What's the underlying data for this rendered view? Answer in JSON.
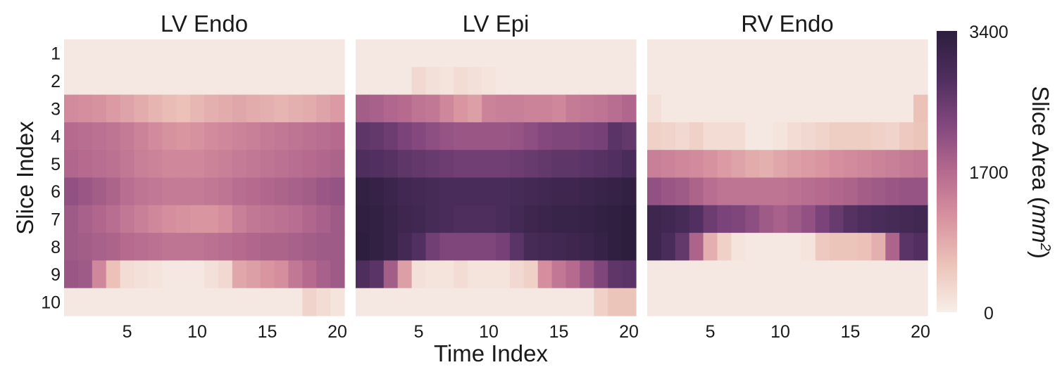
{
  "chart_data": {
    "type": "heatmap",
    "xlabel": "Time Index",
    "ylabel": "Slice Index",
    "x_ticks": [
      5,
      10,
      15,
      20
    ],
    "y_ticks": [
      "1",
      "2",
      "3",
      "4",
      "5",
      "6",
      "7",
      "8",
      "9",
      "10"
    ],
    "colorbar": {
      "label": "Slice Area (",
      "label_unit": "mm",
      "label_unit_sup": "2",
      "label_close": ")",
      "min": 0,
      "max": 3400,
      "ticks": [
        {
          "value": 3400,
          "label": "3400"
        },
        {
          "value": 1700,
          "label": "1700"
        },
        {
          "value": 0,
          "label": "0"
        }
      ],
      "colors": [
        "#f7efe9",
        "#ecc4b9",
        "#d893a0",
        "#b56a8e",
        "#82477e",
        "#4e2e5e",
        "#2d1e3e"
      ]
    },
    "panels": [
      {
        "title": "LV Endo",
        "rows": [
          [
            100,
            100,
            100,
            100,
            100,
            100,
            100,
            100,
            100,
            100,
            100,
            100,
            100,
            100,
            100,
            100,
            100,
            100,
            100,
            100
          ],
          [
            100,
            100,
            100,
            100,
            100,
            100,
            100,
            100,
            100,
            100,
            100,
            100,
            100,
            100,
            100,
            100,
            100,
            100,
            100,
            100
          ],
          [
            1250,
            1200,
            1150,
            1050,
            950,
            850,
            750,
            650,
            600,
            700,
            800,
            850,
            900,
            850,
            800,
            750,
            800,
            850,
            950,
            1050
          ],
          [
            1700,
            1650,
            1600,
            1550,
            1450,
            1350,
            1250,
            1150,
            1100,
            1150,
            1250,
            1300,
            1350,
            1400,
            1450,
            1500,
            1550,
            1600,
            1650,
            1700
          ],
          [
            1750,
            1700,
            1650,
            1600,
            1500,
            1400,
            1350,
            1300,
            1300,
            1300,
            1350,
            1400,
            1450,
            1500,
            1550,
            1600,
            1650,
            1700,
            1750,
            1800
          ],
          [
            2100,
            2000,
            1900,
            1800,
            1650,
            1550,
            1500,
            1450,
            1450,
            1450,
            1500,
            1550,
            1650,
            1700,
            1750,
            1800,
            1850,
            1900,
            2000,
            2050
          ],
          [
            1950,
            1850,
            1750,
            1650,
            1500,
            1400,
            1300,
            1200,
            1150,
            1100,
            1100,
            1200,
            1400,
            1500,
            1550,
            1600,
            1650,
            1750,
            1850,
            1950
          ],
          [
            1950,
            1900,
            1850,
            1800,
            1700,
            1650,
            1600,
            1550,
            1550,
            1550,
            1600,
            1650,
            1700,
            1750,
            1800,
            1800,
            1850,
            1900,
            1950,
            1950
          ],
          [
            2000,
            1950,
            1300,
            600,
            250,
            200,
            150,
            100,
            100,
            100,
            200,
            300,
            900,
            1000,
            1100,
            1200,
            1500,
            1700,
            1850,
            1950
          ],
          [
            100,
            100,
            100,
            100,
            100,
            100,
            100,
            100,
            100,
            100,
            100,
            100,
            100,
            100,
            100,
            100,
            100,
            350,
            250,
            150
          ]
        ]
      },
      {
        "title": "LV Epi",
        "rows": [
          [
            100,
            100,
            100,
            100,
            100,
            100,
            100,
            100,
            100,
            100,
            100,
            100,
            100,
            100,
            100,
            100,
            100,
            100,
            100,
            100
          ],
          [
            100,
            100,
            100,
            100,
            300,
            200,
            150,
            250,
            200,
            150,
            100,
            100,
            100,
            100,
            100,
            100,
            100,
            100,
            100,
            100
          ],
          [
            1900,
            1850,
            1750,
            1700,
            1550,
            1500,
            1300,
            1100,
            1000,
            1350,
            1400,
            1400,
            1350,
            1350,
            1300,
            1450,
            1500,
            1550,
            1650,
            1750
          ],
          [
            2650,
            2600,
            2500,
            2350,
            2250,
            2150,
            2050,
            2000,
            2000,
            2000,
            2000,
            2050,
            2150,
            2250,
            2300,
            2300,
            2350,
            2400,
            2700,
            2600
          ],
          [
            2850,
            2800,
            2750,
            2650,
            2600,
            2550,
            2500,
            2450,
            2450,
            2450,
            2450,
            2500,
            2550,
            2600,
            2650,
            2650,
            2700,
            2750,
            2800,
            2900
          ],
          [
            3300,
            3250,
            3150,
            3050,
            3000,
            2950,
            2900,
            2900,
            2900,
            2900,
            2900,
            2950,
            3000,
            3050,
            3100,
            3100,
            3150,
            3200,
            3250,
            3300
          ],
          [
            3350,
            3300,
            3200,
            3100,
            3050,
            2950,
            2900,
            2850,
            2850,
            2850,
            2900,
            3000,
            3100,
            3150,
            3200,
            3200,
            3250,
            3300,
            3350,
            3400
          ],
          [
            3400,
            3300,
            3200,
            3000,
            2800,
            2450,
            2300,
            2300,
            2300,
            2300,
            2400,
            2700,
            2950,
            3000,
            3050,
            3100,
            3150,
            3250,
            3350,
            3400
          ],
          [
            2850,
            2700,
            1900,
            1000,
            200,
            150,
            150,
            250,
            150,
            150,
            150,
            300,
            400,
            1200,
            1500,
            1700,
            2000,
            2300,
            2650,
            2700
          ],
          [
            100,
            100,
            100,
            100,
            100,
            100,
            100,
            100,
            100,
            100,
            100,
            100,
            100,
            100,
            100,
            100,
            100,
            400,
            550,
            550
          ]
        ]
      },
      {
        "title": "RV Endo",
        "rows": [
          [
            100,
            100,
            100,
            100,
            100,
            100,
            100,
            100,
            100,
            100,
            100,
            100,
            100,
            100,
            100,
            100,
            100,
            100,
            100,
            100
          ],
          [
            100,
            100,
            100,
            100,
            100,
            100,
            100,
            100,
            100,
            100,
            100,
            100,
            100,
            100,
            100,
            100,
            100,
            100,
            100,
            100
          ],
          [
            200,
            100,
            100,
            100,
            100,
            100,
            100,
            100,
            100,
            100,
            100,
            100,
            100,
            100,
            100,
            100,
            100,
            100,
            100,
            600
          ],
          [
            400,
            350,
            300,
            400,
            250,
            250,
            250,
            100,
            100,
            150,
            250,
            300,
            350,
            450,
            450,
            450,
            400,
            350,
            500,
            550
          ],
          [
            1400,
            1350,
            1300,
            1250,
            1150,
            1050,
            950,
            850,
            800,
            900,
            1000,
            1050,
            1100,
            1200,
            1250,
            1300,
            1350,
            1400,
            1450,
            1500
          ],
          [
            2100,
            2000,
            1950,
            1800,
            1650,
            1550,
            1550,
            1550,
            1550,
            1550,
            1600,
            1650,
            1700,
            1750,
            1800,
            1900,
            1950,
            2000,
            2050,
            2050
          ],
          [
            3100,
            3050,
            2950,
            2800,
            2500,
            2350,
            2300,
            2150,
            1950,
            1850,
            1950,
            2100,
            2350,
            2550,
            2750,
            2850,
            2900,
            2950,
            3000,
            3050
          ],
          [
            3100,
            2900,
            2600,
            1800,
            800,
            400,
            150,
            100,
            100,
            100,
            100,
            150,
            500,
            550,
            550,
            600,
            800,
            1800,
            2700,
            2800
          ],
          [
            100,
            100,
            100,
            100,
            100,
            100,
            100,
            100,
            100,
            100,
            100,
            100,
            100,
            100,
            100,
            100,
            100,
            100,
            100,
            100
          ],
          [
            100,
            100,
            100,
            100,
            100,
            100,
            100,
            100,
            100,
            100,
            100,
            100,
            100,
            100,
            100,
            100,
            100,
            100,
            100,
            100
          ]
        ]
      }
    ]
  }
}
